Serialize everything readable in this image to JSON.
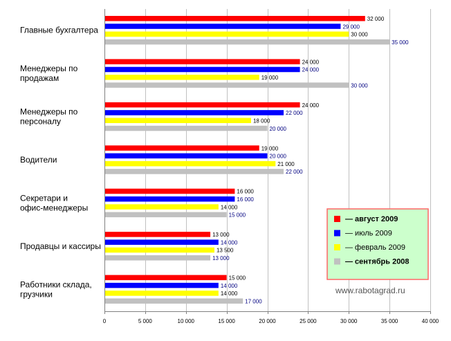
{
  "chart_data": {
    "type": "bar",
    "orientation": "horizontal",
    "categories": [
      [
        "Главные бухгалтера"
      ],
      [
        "Менеджеры по",
        "продажам"
      ],
      [
        "Менеджеры по",
        "персоналу"
      ],
      [
        "Водители"
      ],
      [
        "Секретари и",
        "офис-менеджеры"
      ],
      [
        "Продавцы и кассиры"
      ],
      [
        "Работники склада,",
        "грузчики"
      ]
    ],
    "series": [
      {
        "name": "— август 2009",
        "color": "#ff0000",
        "label_color": "#000000",
        "legend_bold": true,
        "values": [
          32000,
          24000,
          24000,
          19000,
          16000,
          13000,
          15000
        ],
        "labels": [
          "32 000",
          "24 000",
          "24 000",
          "19 000",
          "16 000",
          "13 000",
          "15 000"
        ]
      },
      {
        "name": "— июль 2009",
        "color": "#0000ff",
        "label_color": "#000080",
        "legend_bold": false,
        "values": [
          29000,
          24000,
          22000,
          20000,
          16000,
          14000,
          14000
        ],
        "labels": [
          "29 000",
          "24 000",
          "22 000",
          "20 000",
          "16 000",
          "14 000",
          "14 000"
        ]
      },
      {
        "name": "— февраль 2009",
        "color": "#ffff00",
        "label_color": "#000000",
        "legend_bold": false,
        "values": [
          30000,
          19000,
          18000,
          21000,
          14000,
          13500,
          14000
        ],
        "labels": [
          "30 000",
          "19 000",
          "18 000",
          "21 000",
          "14 000",
          "13 500",
          "14 000"
        ]
      },
      {
        "name": "— сентябрь 2008",
        "color": "#c0c0c0",
        "label_color": "#000080",
        "legend_bold": true,
        "values": [
          35000,
          30000,
          20000,
          22000,
          15000,
          13000,
          17000
        ],
        "labels": [
          "35 000",
          "30 000",
          "20 000",
          "22 000",
          "15 000",
          "13 000",
          "17 000"
        ]
      }
    ],
    "xlim": [
      0,
      40000
    ],
    "xticks": [
      0,
      5000,
      10000,
      15000,
      20000,
      25000,
      30000,
      35000,
      40000
    ],
    "xtick_labels": [
      "0",
      "5 000",
      "10 000",
      "15 000",
      "20 000",
      "25 000",
      "30 000",
      "35 000",
      "40 000"
    ],
    "grid": true,
    "legend_position": "right-bottom",
    "title": "",
    "xlabel": "",
    "ylabel": ""
  },
  "watermark": "www.rabotagrad.ru",
  "colors": {
    "legend_bg": "#ccffcc",
    "legend_border": "#ff6666",
    "grid": "#c0c0c0",
    "axis": "#808080"
  }
}
